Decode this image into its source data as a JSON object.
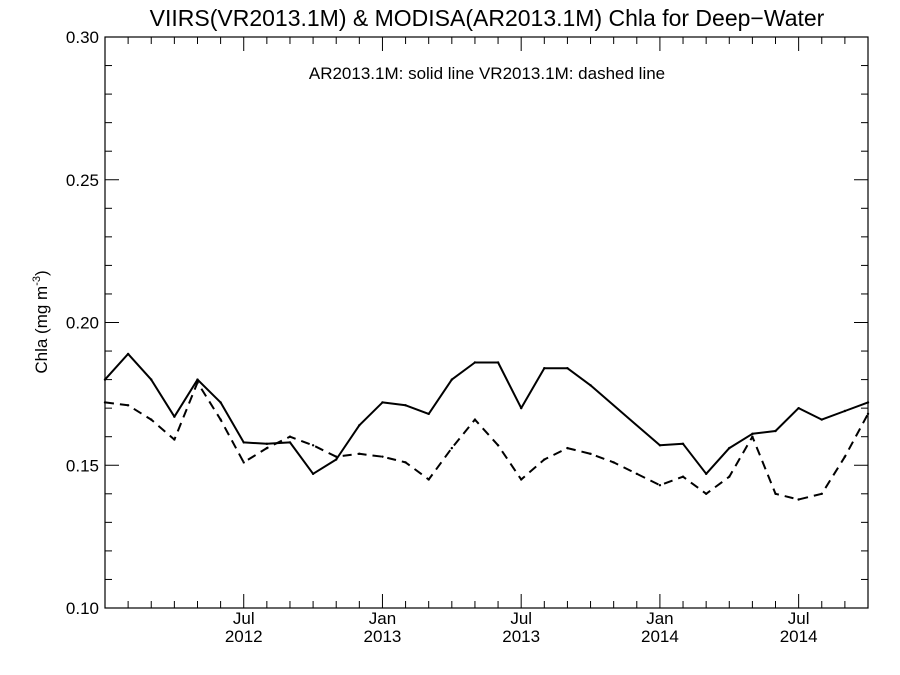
{
  "chart_data": {
    "type": "line",
    "title": "VIIRS(VR2013.1M) & MODISA(AR2013.1M)  Chla for Deep−Water",
    "annotation": "AR2013.1M: solid line   VR2013.1M: dashed line",
    "ylabel": "Chla (mg m",
    "ylabel_superscript": "-3",
    "ylabel_close": ")",
    "ylim": [
      0.1,
      0.3
    ],
    "xlim": [
      "2012-01",
      "2014-10"
    ],
    "y_ticks": [
      "0.10",
      "0.15",
      "0.20",
      "0.25",
      "0.30"
    ],
    "x_ticks": [
      {
        "month": "Jul",
        "year": "2012",
        "date": "2012-07"
      },
      {
        "month": "Jan",
        "year": "2013",
        "date": "2013-01"
      },
      {
        "month": "Jul",
        "year": "2013",
        "date": "2013-07"
      },
      {
        "month": "Jan",
        "year": "2014",
        "date": "2014-01"
      },
      {
        "month": "Jul",
        "year": "2014",
        "date": "2014-07"
      }
    ],
    "series": [
      {
        "name": "AR2013.1M",
        "style": "solid",
        "x": [
          "2012-01",
          "2012-02",
          "2012-03",
          "2012-04",
          "2012-05",
          "2012-06",
          "2012-07",
          "2012-08",
          "2012-09",
          "2012-10",
          "2012-11",
          "2012-12",
          "2013-01",
          "2013-02",
          "2013-03",
          "2013-04",
          "2013-05",
          "2013-06",
          "2013-07",
          "2013-08",
          "2013-09",
          "2013-10",
          "2014-01",
          "2014-02",
          "2014-03",
          "2014-04",
          "2014-05",
          "2014-06",
          "2014-07",
          "2014-08",
          "2014-09",
          "2014-10"
        ],
        "values": [
          0.18,
          0.189,
          0.18,
          0.167,
          0.18,
          0.172,
          0.158,
          0.1575,
          0.158,
          0.147,
          0.152,
          0.164,
          0.172,
          0.171,
          0.168,
          0.18,
          0.186,
          0.186,
          0.17,
          0.184,
          0.184,
          0.178,
          0.157,
          0.1575,
          0.147,
          0.156,
          0.161,
          0.162,
          0.17,
          0.166,
          0.169,
          0.172
        ]
      },
      {
        "name": "VR2013.1M",
        "style": "dashed",
        "x": [
          "2012-01",
          "2012-02",
          "2012-03",
          "2012-04",
          "2012-05",
          "2012-06",
          "2012-07",
          "2012-08",
          "2012-09",
          "2012-10",
          "2012-11",
          "2012-12",
          "2013-01",
          "2013-02",
          "2013-03",
          "2013-04",
          "2013-05",
          "2013-06",
          "2013-07",
          "2013-08",
          "2013-09",
          "2013-10",
          "2013-11",
          "2013-12",
          "2014-01",
          "2014-02",
          "2014-03",
          "2014-04",
          "2014-05",
          "2014-06",
          "2014-07",
          "2014-08",
          "2014-09",
          "2014-10"
        ],
        "values": [
          0.172,
          0.171,
          0.166,
          0.159,
          0.179,
          0.166,
          0.151,
          0.156,
          0.16,
          0.157,
          0.153,
          0.154,
          0.153,
          0.151,
          0.145,
          0.156,
          0.166,
          0.157,
          0.145,
          0.152,
          0.156,
          0.154,
          0.151,
          0.147,
          0.143,
          0.146,
          0.14,
          0.146,
          0.16,
          0.14,
          0.138,
          0.14,
          0.153,
          0.168
        ]
      }
    ],
    "grid": false,
    "legend": "none"
  }
}
